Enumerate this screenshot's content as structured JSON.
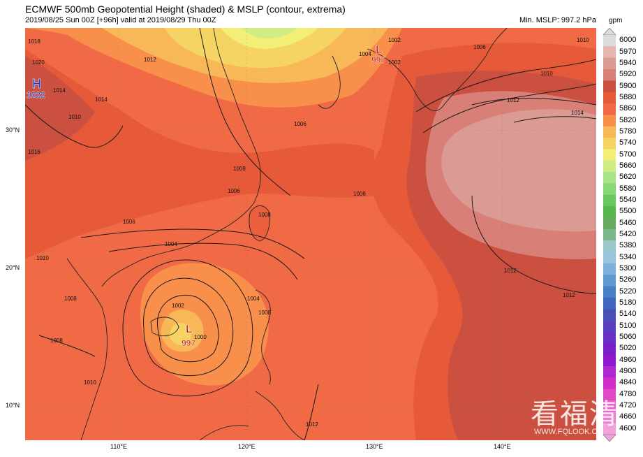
{
  "header": {
    "title": "ECMWF 500mb Geopotential Height (shaded) & MSLP (contour, extrema)",
    "subtitle": "2019/08/25 Sun 00Z [+96h] valid at 2019/08/29 Thu 00Z",
    "min_mslp": "Min. MSLP: 997.2 hPa"
  },
  "axes": {
    "lat_labels": [
      "30°N",
      "20°N",
      "10°N"
    ],
    "lon_labels": [
      "110°E",
      "120°E",
      "130°E",
      "140°E"
    ]
  },
  "colorbar": {
    "unit": "gpm",
    "labels": [
      "6000",
      "5970",
      "5940",
      "5920",
      "5900",
      "5880",
      "5860",
      "5820",
      "5780",
      "5740",
      "5700",
      "5660",
      "5620",
      "5580",
      "5540",
      "5500",
      "5460",
      "5420",
      "5380",
      "5340",
      "5300",
      "5260",
      "5220",
      "5180",
      "5140",
      "5100",
      "5060",
      "5020",
      "4960",
      "4900",
      "4840",
      "4780",
      "4720",
      "4660",
      "4600"
    ],
    "colors": [
      "#dcdcdc",
      "#e8b4b0",
      "#dc9a94",
      "#d88078",
      "#cc5040",
      "#e65a3a",
      "#f06a45",
      "#f8904c",
      "#f8b858",
      "#f6d464",
      "#f2ee78",
      "#d0ec84",
      "#a8e488",
      "#88d878",
      "#68c860",
      "#54b84c",
      "#66aa60",
      "#7ab88c",
      "#9cc8cc",
      "#98c4dc",
      "#80b0dc",
      "#6098d0",
      "#4880c8",
      "#4068c0",
      "#4850b8",
      "#5840c0",
      "#6830c4",
      "#7a20c8",
      "#9018d0",
      "#b028d0",
      "#d030c8",
      "#e048c4",
      "#ee60c8",
      "#f07cd0",
      "#f4a0dc"
    ]
  },
  "pressure_centers": [
    {
      "type": "H",
      "value": "1022",
      "color": "#1a3ccc"
    },
    {
      "type": "L",
      "value": "997",
      "color": "#cc1a1a"
    },
    {
      "type": "L",
      "value": "997",
      "color": "#cc1a1a"
    }
  ],
  "contour_labels": [
    "1018",
    "1020",
    "1014",
    "1012",
    "1010",
    "1016",
    "1014",
    "1006",
    "1004",
    "1002",
    "1006",
    "1008",
    "1006",
    "1004",
    "1006",
    "1010",
    "1008",
    "1008",
    "1010",
    "1002",
    "1000",
    "1004",
    "1006",
    "1008",
    "1012",
    "1002",
    "1006",
    "1010",
    "1012",
    "1014",
    "1010",
    "1012",
    "1012"
  ],
  "watermark": {
    "text": "看福清",
    "url": "WWW.FQLOOK.CN"
  }
}
